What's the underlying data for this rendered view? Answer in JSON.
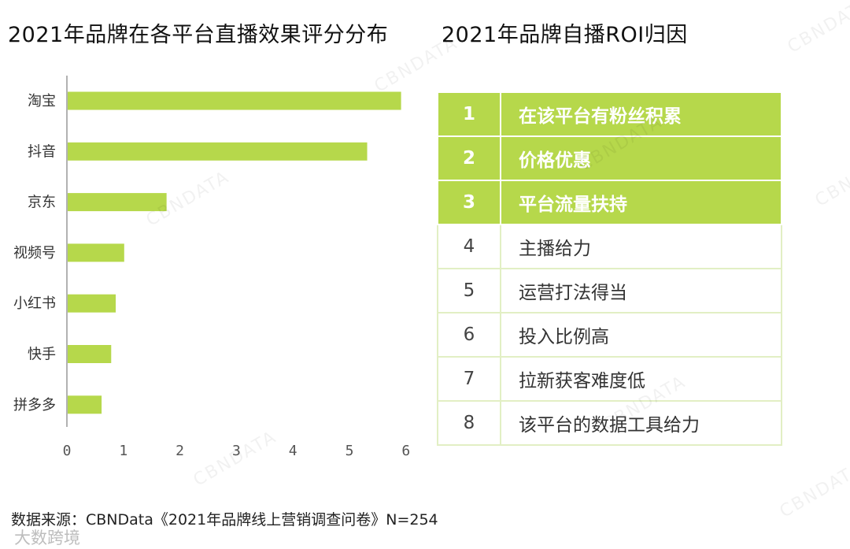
{
  "left_title": "2021年品牌在各平台直播效果评分分布",
  "right_title": "2021年品牌自播ROI归因",
  "chart_data": {
    "type": "bar",
    "orientation": "horizontal",
    "title": "2021年品牌在各平台直播效果评分分布",
    "categories": [
      "淘宝",
      "抖音",
      "京东",
      "视频号",
      "小红书",
      "快手",
      "拼多多"
    ],
    "values": [
      5.9,
      5.3,
      1.75,
      1.0,
      0.85,
      0.77,
      0.6
    ],
    "xlim": [
      0,
      6
    ],
    "xticks": [
      "0",
      "1",
      "2",
      "3",
      "4",
      "5",
      "6"
    ],
    "bar_color": "#b6d84b",
    "grid": false
  },
  "roi_table": {
    "highlight_color": "#b6d84b",
    "rows": [
      {
        "rank": "1",
        "reason": "在该平台有粉丝积累",
        "highlight": true
      },
      {
        "rank": "2",
        "reason": "价格优惠",
        "highlight": true
      },
      {
        "rank": "3",
        "reason": "平台流量扶持",
        "highlight": true
      },
      {
        "rank": "4",
        "reason": "主播给力",
        "highlight": false
      },
      {
        "rank": "5",
        "reason": "运营打法得当",
        "highlight": false
      },
      {
        "rank": "6",
        "reason": "投入比例高",
        "highlight": false
      },
      {
        "rank": "7",
        "reason": "拉新获客难度低",
        "highlight": false
      },
      {
        "rank": "8",
        "reason": "该平台的数据工具给力",
        "highlight": false
      }
    ]
  },
  "source": "数据来源：CBNData《2021年品牌线上营销调查问卷》N=254",
  "watermark": "CBNDATA",
  "wechat_mark": "大数跨境"
}
